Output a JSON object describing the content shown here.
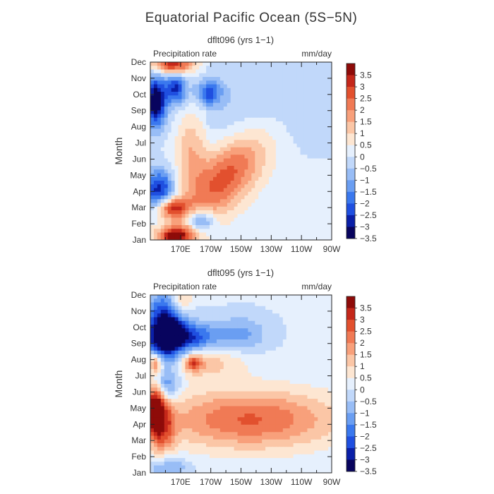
{
  "figure": {
    "title": "Equatorial Pacific Ocean (5S−5N)"
  },
  "colors": {
    "scale": [
      "#08045e",
      "#0a1fa8",
      "#1f4fe0",
      "#3a78ee",
      "#6a9ef2",
      "#98bdf6",
      "#c1d8fa",
      "#e6f0fd",
      "#fde6d2",
      "#fbc6a6",
      "#f8a07b",
      "#f07a55",
      "#e2502e",
      "#c4271a",
      "#8e0b09"
    ]
  },
  "chart_data": [
    {
      "type": "heatmap",
      "panel": "top",
      "title": "dflt096 (yrs 1−1)",
      "variable_label": "Precipitation rate",
      "units": "mm/day",
      "ylabel": "Month",
      "xlabel": "",
      "x_ticks": [
        "170E",
        "170W",
        "150W",
        "130W",
        "110W",
        "90W"
      ],
      "y_ticks": [
        "Jan",
        "Feb",
        "Mar",
        "Apr",
        "May",
        "Jun",
        "Jul",
        "Aug",
        "Sep",
        "Oct",
        "Nov",
        "Dec"
      ],
      "colorbar_labels": [
        "3.5",
        "3",
        "2.5",
        "2",
        "1.5",
        "1",
        "0.5",
        "0",
        "−0.5",
        "−1",
        "−1.5",
        "−2",
        "−2.5",
        "−3",
        "−3.5"
      ],
      "levels": [
        -3.5,
        -3,
        -2.5,
        -2,
        -1.5,
        -1,
        -0.5,
        0,
        0.5,
        1,
        1.5,
        2,
        2.5,
        3,
        3.5
      ],
      "x_domain": [
        "150E",
        "90W"
      ],
      "y_domain": [
        "Jan",
        "Dec"
      ]
    },
    {
      "type": "heatmap",
      "panel": "bottom",
      "title": "dflt095 (yrs 1−1)",
      "variable_label": "Precipitation rate",
      "units": "mm/day",
      "ylabel": "Month",
      "xlabel": "",
      "x_ticks": [
        "170E",
        "170W",
        "150W",
        "130W",
        "110W",
        "90W"
      ],
      "y_ticks": [
        "Jan",
        "Feb",
        "Mar",
        "Apr",
        "May",
        "Jun",
        "Jul",
        "Aug",
        "Sep",
        "Oct",
        "Nov",
        "Dec"
      ],
      "colorbar_labels": [
        "3.5",
        "3",
        "2.5",
        "2",
        "1.5",
        "1",
        "0.5",
        "0",
        "−0.5",
        "−1",
        "−1.5",
        "−2",
        "−2.5",
        "−3",
        "−3.5"
      ],
      "levels": [
        -3.5,
        -3,
        -2.5,
        -2,
        -1.5,
        -1,
        -0.5,
        0,
        0.5,
        1,
        1.5,
        2,
        2.5,
        3,
        3.5
      ],
      "x_domain": [
        "150E",
        "90W"
      ],
      "y_domain": [
        "Jan",
        "Dec"
      ]
    }
  ]
}
